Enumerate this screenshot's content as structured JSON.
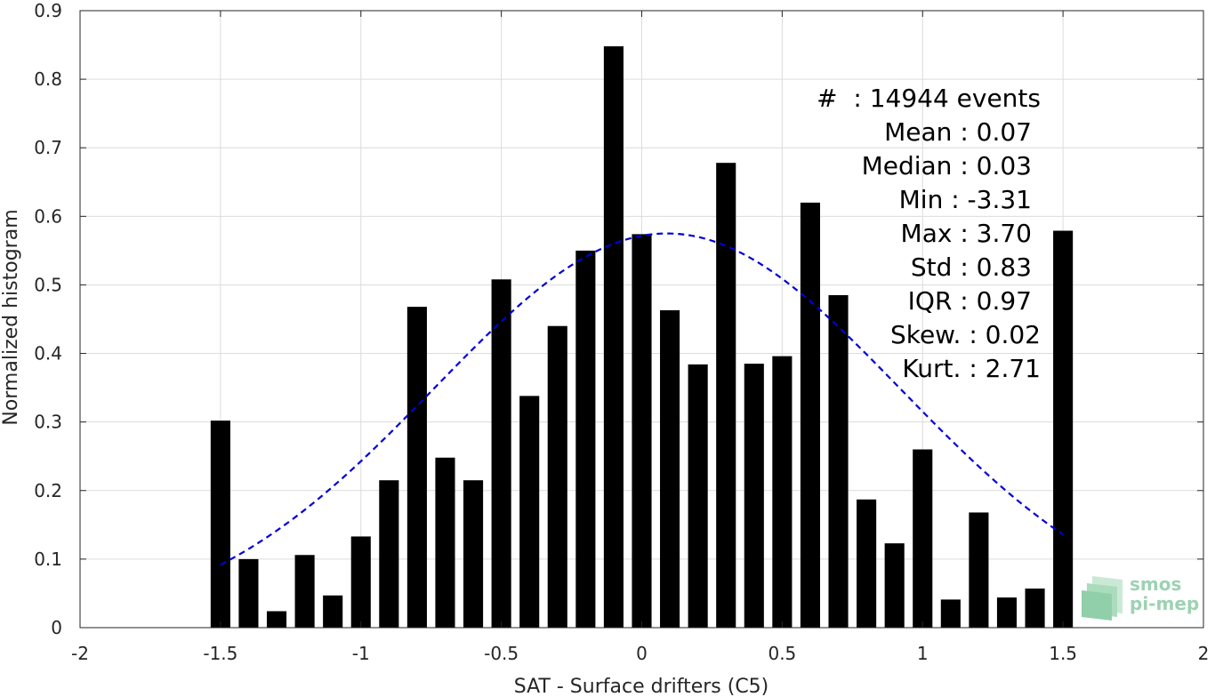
{
  "chart_data": {
    "type": "bar",
    "title": "",
    "xlabel": "SAT - Surface drifters (C5)",
    "ylabel": "Normalized histogram",
    "xlim": [
      -2,
      2
    ],
    "ylim": [
      0,
      0.9
    ],
    "grid": true,
    "x_ticks": [
      -2,
      -1.5,
      -1,
      -0.5,
      0,
      0.5,
      1,
      1.5,
      2
    ],
    "x_tick_labels": [
      "-2",
      "-1.5",
      "-1",
      "-0.5",
      "0",
      "0.5",
      "1",
      "1.5",
      "2"
    ],
    "y_ticks": [
      0,
      0.1,
      0.2,
      0.3,
      0.4,
      0.5,
      0.6,
      0.7,
      0.8,
      0.9
    ],
    "y_tick_labels": [
      "0",
      "0.1",
      "0.2",
      "0.3",
      "0.4",
      "0.5",
      "0.6",
      "0.7",
      "0.8",
      "0.9"
    ],
    "bar_color": "#000000",
    "bar_width": 0.07,
    "x": [
      -1.5,
      -1.4,
      -1.3,
      -1.2,
      -1.1,
      -1.0,
      -0.9,
      -0.8,
      -0.7,
      -0.6,
      -0.5,
      -0.4,
      -0.3,
      -0.2,
      -0.1,
      0.0,
      0.1,
      0.2,
      0.3,
      0.4,
      0.5,
      0.6,
      0.7,
      0.8,
      0.9,
      1.0,
      1.1,
      1.2,
      1.3,
      1.4,
      1.5
    ],
    "values": [
      0.302,
      0.1,
      0.024,
      0.106,
      0.047,
      0.133,
      0.215,
      0.468,
      0.248,
      0.215,
      0.508,
      0.338,
      0.44,
      0.55,
      0.848,
      0.574,
      0.463,
      0.384,
      0.678,
      0.385,
      0.396,
      0.62,
      0.485,
      0.187,
      0.123,
      0.26,
      0.041,
      0.168,
      0.044,
      0.057,
      0.579
    ],
    "fit": {
      "type": "gaussian",
      "color": "#0000d9",
      "style": "dashed",
      "mean": 0.09,
      "std": 0.83,
      "peak": 0.575,
      "x_range": [
        -1.5,
        1.5
      ]
    },
    "annotations": [
      "#  : 14944 events",
      "Mean : 0.07",
      "Median : 0.03",
      "Min : -3.31",
      "Max : 3.70",
      "Std : 0.83",
      "IQR : 0.97",
      "Skew. : 0.02",
      "Kurt. : 2.71"
    ]
  },
  "logo": {
    "line1": "smos",
    "line2": "pi-mep",
    "color": "#7cc49a"
  }
}
